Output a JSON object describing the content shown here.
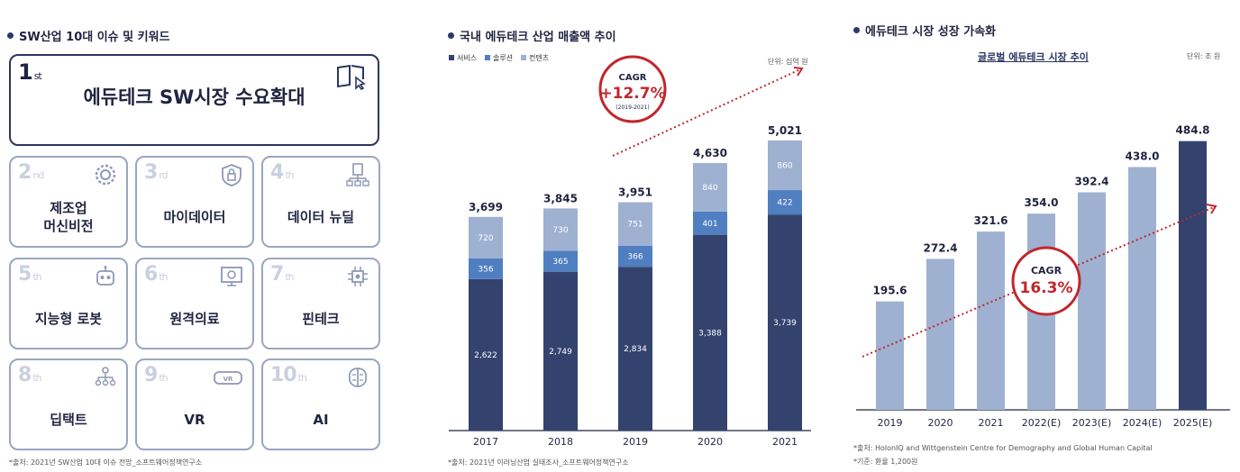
{
  "left": {
    "title": "SW산업 10대 이슈 및 키워드",
    "top_item": {
      "rank": "1",
      "suffix": "st",
      "label": "에듀테크 SW시장 수요확대",
      "icon": "book-cursor-icon"
    },
    "items": [
      {
        "rank": "2",
        "suffix": "nd",
        "label": "제조업\n머신비전",
        "icon": "gear-icon"
      },
      {
        "rank": "3",
        "suffix": "rd",
        "label": "마이데이터",
        "icon": "lock-shield-icon"
      },
      {
        "rank": "4",
        "suffix": "th",
        "label": "데이터 뉴딜",
        "icon": "network-icon"
      },
      {
        "rank": "5",
        "suffix": "th",
        "label": "지능형 로봇",
        "icon": "robot-icon"
      },
      {
        "rank": "6",
        "suffix": "th",
        "label": "원격의료",
        "icon": "telemedicine-icon"
      },
      {
        "rank": "7",
        "suffix": "th",
        "label": "핀테크",
        "icon": "chip-icon"
      },
      {
        "rank": "8",
        "suffix": "th",
        "label": "딥택트",
        "icon": "people-network-icon"
      },
      {
        "rank": "9",
        "suffix": "th",
        "label": "VR",
        "icon": "vr-headset-icon"
      },
      {
        "rank": "10",
        "suffix": "th",
        "label": "AI",
        "icon": "brain-icon"
      }
    ],
    "source": "*출처: 2021년 SW산업 10대 이슈 전망_소프트웨어정책연구소"
  },
  "chart_data": [
    {
      "type": "bar",
      "stacked": true,
      "title": "국내 에듀테크 산업 매출액 추이",
      "unit": "단위: 십억 원",
      "categories": [
        "2017",
        "2018",
        "2019",
        "2020",
        "2021"
      ],
      "series": [
        {
          "name": "서비스",
          "values": [
            2622,
            2749,
            2834,
            3388,
            3739
          ],
          "labels": [
            "2,622",
            "2,749",
            "2,834",
            "3,388",
            "3,739"
          ],
          "color": "#34426e"
        },
        {
          "name": "솔루션",
          "values": [
            356,
            365,
            366,
            401,
            422
          ],
          "labels": [
            "356",
            "365",
            "366",
            "401",
            "422"
          ],
          "color": "#4f7fc0"
        },
        {
          "name": "컨텐츠",
          "values": [
            720,
            730,
            751,
            840,
            860
          ],
          "labels": [
            "720",
            "730",
            "751",
            "840",
            "860"
          ],
          "color": "#9fb1d1"
        }
      ],
      "totals": [
        "3,699",
        "3,845",
        "3,951",
        "4,630",
        "5,021"
      ],
      "ylim": [
        0,
        5300
      ],
      "cagr": {
        "label": "CAGR",
        "value": "+12.7%",
        "period": "(2019-2021)"
      },
      "source": "*출처: 2021년 이러닝산업 실태조사_소프트웨어정책연구소"
    },
    {
      "type": "bar",
      "title": "에듀테크 시장 성장 가속화",
      "subtitle": "글로벌 에듀테크 시장 추이",
      "unit": "단위: 조 원",
      "categories": [
        "2019",
        "2020",
        "2021",
        "2022(E)",
        "2023(E)",
        "2024(E)",
        "2025(E)"
      ],
      "values": [
        195.6,
        272.4,
        321.6,
        354.0,
        392.4,
        438.0,
        484.8
      ],
      "labels": [
        "195.6",
        "272.4",
        "321.6",
        "354.0",
        "392.4",
        "438.0",
        "484.8"
      ],
      "colors": [
        "#9fb1d1",
        "#9fb1d1",
        "#9fb1d1",
        "#9fb1d1",
        "#9fb1d1",
        "#9fb1d1",
        "#34426e"
      ],
      "ylim": [
        0,
        520
      ],
      "cagr": {
        "label": "CAGR",
        "value": "16.3%"
      },
      "source": "*출처: HolonIQ and Wittgenstein Centre for Demography and Global Human Capital",
      "note": "*기준: 환율 1,200원"
    }
  ],
  "colors": {
    "accent_red": "#c0272d",
    "navy": "#34426e",
    "mid_blue": "#4f7fc0",
    "light_blue": "#9fb1d1"
  }
}
